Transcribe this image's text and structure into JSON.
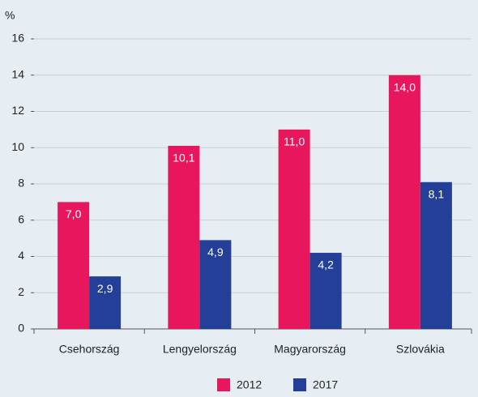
{
  "chart_data": {
    "type": "bar",
    "y_label": "%",
    "categories": [
      "Csehország",
      "Lengyelország",
      "Magyarország",
      "Szlovákia"
    ],
    "series": [
      {
        "name": "2012",
        "color": "#e8175d",
        "values": [
          7.0,
          10.1,
          11.0,
          14.0
        ],
        "value_labels": [
          "7,0",
          "10,1",
          "11,0",
          "14,0"
        ]
      },
      {
        "name": "2017",
        "color": "#233f97",
        "values": [
          2.9,
          4.9,
          4.2,
          8.1
        ],
        "value_labels": [
          "2,9",
          "4,9",
          "4,2",
          "8,1"
        ]
      }
    ],
    "ylim": [
      0,
      16
    ],
    "yticks": [
      0,
      2,
      4,
      6,
      8,
      10,
      12,
      14,
      16
    ],
    "grid": true,
    "legend": "bottom"
  }
}
